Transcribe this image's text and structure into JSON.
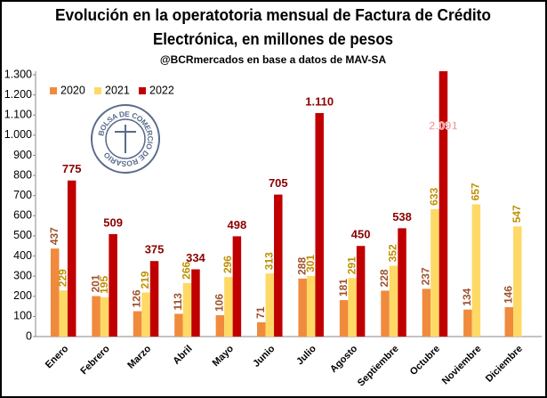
{
  "chart_data": {
    "type": "bar",
    "title": [
      "Evolución en la operatotoria mensual de Factura de Crédito",
      "Electrónica, en millones de pesos"
    ],
    "subtitle": "@BCRmercados en base a datos de MAV-SA",
    "logo_text": "BOLSA DE COMERCIO DE ROSARIO",
    "categories": [
      "Enero",
      "Febrero",
      "Marzo",
      "Abril",
      "Mayo",
      "Junio",
      "Julio",
      "Agosto",
      "Septiembre",
      "Octubre",
      "Noviembre",
      "Diciembre"
    ],
    "series": [
      {
        "name": "2020",
        "color": "#f08a3c",
        "label_color": "#a0522d",
        "values": [
          437,
          201,
          126,
          113,
          106,
          71,
          288,
          181,
          228,
          237,
          134,
          146
        ]
      },
      {
        "name": "2021",
        "color": "#ffd966",
        "label_color": "#bf9000",
        "values": [
          229,
          195,
          219,
          266,
          296,
          313,
          301,
          291,
          352,
          633,
          657,
          547
        ]
      },
      {
        "name": "2022",
        "color": "#c00000",
        "label_color": "#8b0000",
        "values": [
          775,
          509,
          375,
          334,
          498,
          705,
          1110,
          450,
          538,
          2091,
          null,
          null
        ],
        "value_labels": [
          "775",
          "509",
          "375",
          "334",
          "498",
          "705",
          "1.110",
          "450",
          "538",
          "2.091",
          null,
          null
        ]
      }
    ],
    "ylim": [
      0,
      1300
    ],
    "yticks": [
      0,
      100,
      200,
      300,
      400,
      500,
      600,
      700,
      800,
      900,
      {
        "value": 1000,
        "label": "1.000"
      },
      {
        "value": 1100,
        "label": "1.100"
      },
      {
        "value": 1200,
        "label": "1.200"
      },
      {
        "value": 1300,
        "label": "1.300"
      }
    ],
    "legend": "top-left"
  }
}
